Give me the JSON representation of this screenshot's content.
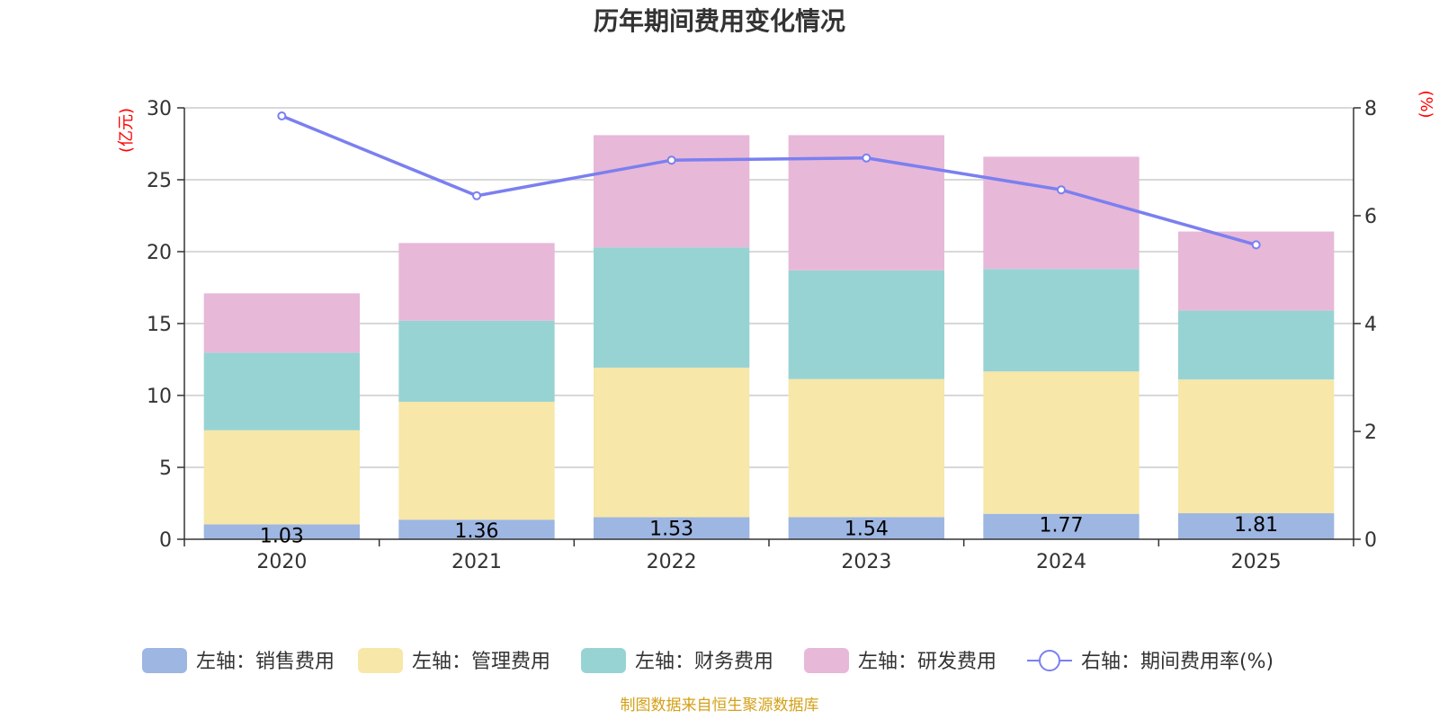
{
  "chart_data": {
    "type": "bar",
    "title": "历年期间费用变化情况",
    "categories": [
      "2020",
      "2021",
      "2022",
      "2023",
      "2024",
      "2025"
    ],
    "left_axis": {
      "unit": "(亿元)",
      "ylim": [
        0,
        30
      ],
      "ticks": [
        "0",
        "5",
        "10",
        "15",
        "20",
        "25",
        "30"
      ]
    },
    "right_axis": {
      "unit": "(%)",
      "ylim": [
        0,
        8
      ],
      "ticks": [
        "0",
        "2",
        "4",
        "6",
        "8"
      ]
    },
    "series": [
      {
        "name": "左轴：销售费用",
        "kind": "bar",
        "color": "#9db6e2",
        "values": [
          1.03,
          1.36,
          1.53,
          1.54,
          1.77,
          1.81
        ],
        "labels": [
          "1.03",
          "1.36",
          "1.53",
          "1.54",
          "1.77",
          "1.81"
        ]
      },
      {
        "name": "左轴：管理费用",
        "kind": "bar",
        "color": "#f7e7a8",
        "values": [
          6.55,
          8.2,
          10.4,
          9.6,
          9.9,
          9.3
        ]
      },
      {
        "name": "左轴：财务费用",
        "kind": "bar",
        "color": "#98d3d4",
        "values": [
          5.4,
          5.64,
          8.37,
          7.56,
          7.13,
          4.79
        ]
      },
      {
        "name": "左轴：研发费用",
        "kind": "bar",
        "color": "#e7b8d8",
        "values": [
          4.12,
          5.4,
          7.8,
          9.4,
          7.8,
          5.5
        ]
      },
      {
        "name": "右轴：期间费用率(%)",
        "kind": "line",
        "color": "#7b7ff0",
        "values": [
          7.85,
          6.37,
          7.03,
          7.07,
          6.48,
          5.46
        ]
      }
    ],
    "legend_position": "bottom",
    "grid": true
  },
  "source": "制图数据来自恒生聚源数据库"
}
